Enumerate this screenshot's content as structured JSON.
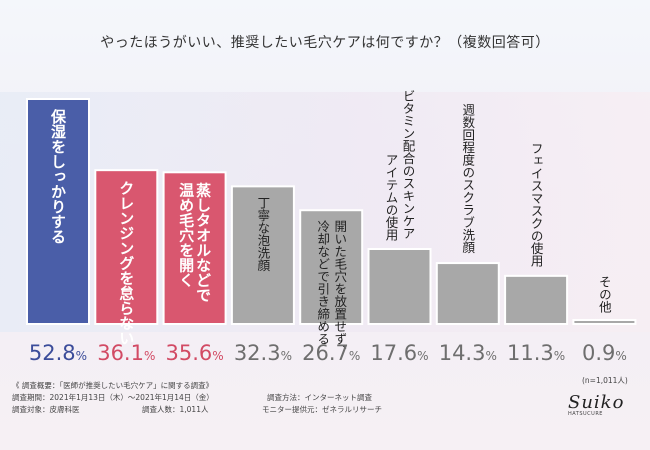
{
  "title": "やったほうがいい、推奨したい毛穴ケアは何ですか？（複数回答可）",
  "chart_data": {
    "type": "bar",
    "categories": [
      "保湿をしっかりする",
      "クレンジングを怠らない",
      "蒸しタオルなどで温め毛穴を開く",
      "丁寧な泡洗顔",
      "開いた毛穴を放置せず、冷却などで引き締める",
      "ビタミン配合のスキンケアアイテムの使用",
      "週数回程度のスクラブ洗顔",
      "フェイスマスクの使用",
      "その他"
    ],
    "category_lines": [
      [
        "保湿をしっかりする"
      ],
      [
        "クレンジングを怠らない"
      ],
      [
        "蒸しタオルなどで",
        "温め毛穴を開く"
      ],
      [
        "丁寧な泡洗顔"
      ],
      [
        "開いた毛穴を放置せず、",
        "冷却などで引き締める"
      ],
      [
        "ビタミン配合のスキンケア",
        "アイテムの使用"
      ],
      [
        "週数回程度のスクラブ洗顔"
      ],
      [
        "フェイスマスクの使用"
      ],
      [
        "その他"
      ]
    ],
    "values": [
      52.8,
      36.1,
      35.6,
      32.3,
      26.7,
      17.6,
      14.3,
      11.3,
      0.9
    ],
    "value_labels": [
      {
        "main": "52.8",
        "tail": "%"
      },
      {
        "main": "36.1",
        "tail": "%"
      },
      {
        "main": "35.6",
        "tail": "%"
      },
      {
        "main": "32.3",
        "tail": "%"
      },
      {
        "main": "26.7",
        "tail": "%"
      },
      {
        "main": "17.6",
        "tail": "%"
      },
      {
        "main": "14.3",
        "tail": "%"
      },
      {
        "main": "11.3",
        "tail": "%"
      },
      {
        "main": "0.9",
        "tail": "%"
      }
    ],
    "ylim": [
      0,
      60
    ],
    "grid": false,
    "colors": {
      "top1": "#4a5ea8",
      "top2": "#d9576f",
      "others": "#a8a8a8",
      "value_top1": "#3b4c9a",
      "value_top2": "#d24a64",
      "value_others": "#6e6e6e"
    }
  },
  "sample_note": "(n=1,011人)",
  "footer": {
    "heading": "《 調査概要：「医師が推奨したい毛穴ケア」に関する調査》",
    "period": "調査期間：2021年1月13日（木）～2021年1月14日（金）",
    "method": "調査方法：インターネット調査",
    "subject": "調査対象：皮膚科医",
    "count": "調査人数：1,011人",
    "provider": "モニター提供元：ゼネラルリサーチ"
  },
  "logo": {
    "script": "Suiko",
    "sub": "HATSUCURE"
  }
}
